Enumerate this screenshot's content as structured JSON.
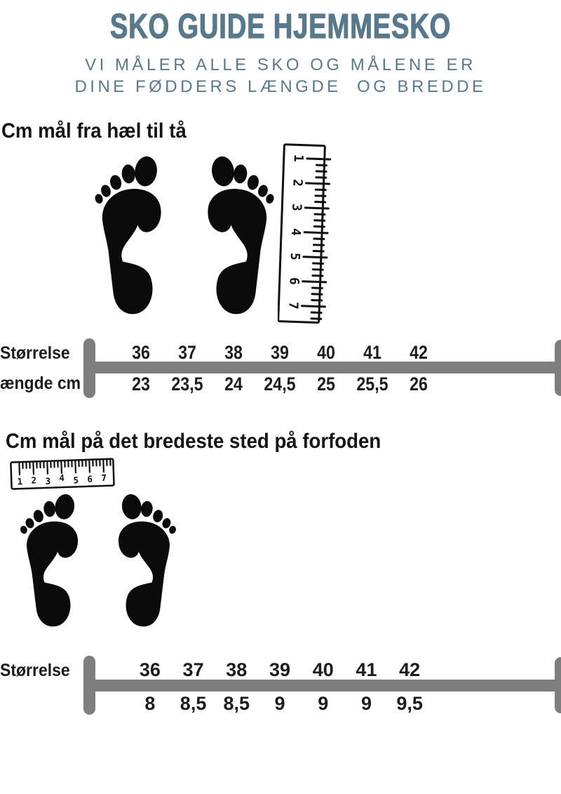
{
  "colors": {
    "accent": "#58798c",
    "bar_gray": "#7e7e7e",
    "ink": "#141414"
  },
  "header": {
    "title": "SKO GUIDE HJEMMESKO",
    "subtitle_line1": "VI MÅLER ALLE SKO OG MÅLENE ER",
    "subtitle_line2": "DINE FØDDERS LÆNGDE  OG BREDDE"
  },
  "length_section": {
    "heading": "Cm mål fra hæl til tå",
    "ruler_numbers": [
      "1",
      "2",
      "3",
      "4",
      "5",
      "6",
      "7"
    ],
    "scale": {
      "row1_label": "Størrelse",
      "row2_label": "Længde cm",
      "sizes": [
        "36",
        "37",
        "38",
        "39",
        "40",
        "41",
        "42"
      ],
      "lengths_cm": [
        "23",
        "23,5",
        "24",
        "24,5",
        "25",
        "25,5",
        "26"
      ]
    }
  },
  "width_section": {
    "heading": "Cm mål på det bredeste sted på forfoden",
    "ruler_numbers": [
      "1",
      "2",
      "3",
      "4",
      "5",
      "6",
      "7"
    ],
    "scale": {
      "row1_label": "Størrelse",
      "sizes": [
        "36",
        "37",
        "38",
        "39",
        "40",
        "41",
        "42"
      ],
      "widths_cm": [
        "8",
        "8,5",
        "8,5",
        "9",
        "9",
        "9",
        "9,5"
      ]
    }
  }
}
